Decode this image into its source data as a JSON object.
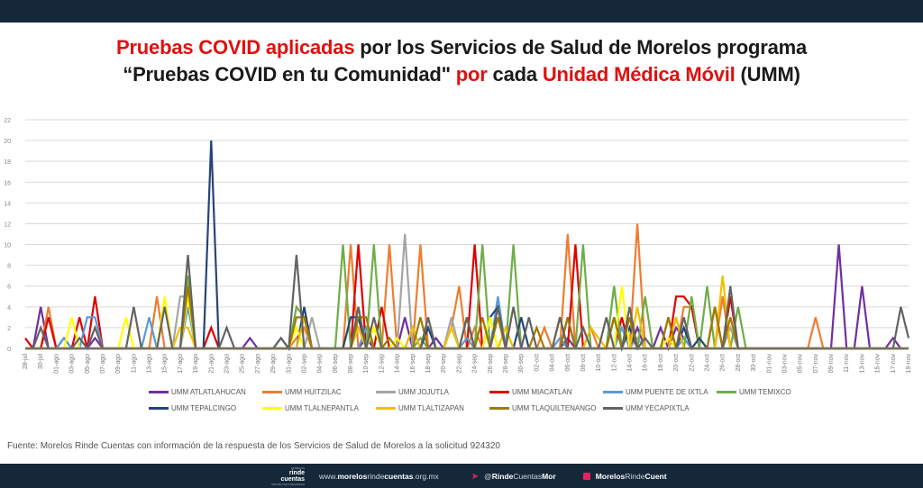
{
  "title": {
    "line1_red": "Pruebas COVID aplicadas",
    "line1_black": " por los Servicios de Salud de Morelos programa",
    "line2_black1": "“Pruebas COVID en tu Comunidad\" ",
    "line2_red1": "por",
    "line2_black2": " cada ",
    "line2_red2": "Unidad Médica Móvil",
    "line2_black3": " (UMM)"
  },
  "source": "Fuente: Morelos Rinde Cuentas con información de la respuesta de los Servicios de Salud de Morelos a la solicitud 924320",
  "footer": {
    "logo_small": "MORELOS",
    "logo_line1": "rinde",
    "logo_line2": "cuentas",
    "logo_tag": "CENTRO DE INTEGRIDAD",
    "url_pre": "www.",
    "url_b1": "morelos",
    "url_mid": "rinde",
    "url_b2": "cuentas",
    "url_post": ".org.mx",
    "twitter_icon": "twitter-icon",
    "twitter_pre": "@",
    "twitter_b": "Rinde",
    "twitter_mid": "Cuentas",
    "twitter_b2": "Mor",
    "facebook_icon": "facebook-icon",
    "facebook_b": "Morelos",
    "facebook_mid": "Rinde",
    "facebook_b2": "Cuent"
  },
  "chart_data": {
    "type": "line",
    "title": "",
    "xlabel": "",
    "ylabel": "",
    "ylim": [
      0,
      22
    ],
    "yticks": [
      0,
      2,
      4,
      6,
      8,
      10,
      12,
      14,
      16,
      18,
      20,
      22
    ],
    "grid": true,
    "legend_position": "bottom",
    "x_start": "28-jul",
    "x_end": "19-nov",
    "num_days": 115,
    "xtick_labels": [
      "28-jul",
      "30-jul",
      "01-ago",
      "03-ago",
      "05-ago",
      "07-ago",
      "09-ago",
      "11-ago",
      "13-ago",
      "15-ago",
      "17-ago",
      "19-ago",
      "21-ago",
      "23-ago",
      "25-ago",
      "27-ago",
      "29-ago",
      "31-ago",
      "02-sep",
      "04-sep",
      "06-sep",
      "08-sep",
      "10-sep",
      "12-sep",
      "14-sep",
      "16-sep",
      "18-sep",
      "20-sep",
      "22-sep",
      "24-sep",
      "26-sep",
      "28-sep",
      "30-sep",
      "02-oct",
      "04-oct",
      "06-oct",
      "08-oct",
      "10-oct",
      "12-oct",
      "14-oct",
      "16-oct",
      "18-oct",
      "20-oct",
      "22-oct",
      "24-oct",
      "26-oct",
      "28-oct",
      "30-oct",
      "01-nov",
      "03-nov",
      "05-nov",
      "07-nov",
      "09-nov",
      "11-nov",
      "13-nov",
      "15-nov",
      "17-nov",
      "19-nov"
    ],
    "series_note": "values given as [day_index, value] pairs; all other days are 0; day 0 = 28-jul",
    "series": [
      {
        "name": "UMM ATLATLAHUCAN",
        "color": "#7030a0",
        "points": [
          [
            2,
            4
          ],
          [
            5,
            1
          ],
          [
            9,
            1
          ],
          [
            29,
            1
          ],
          [
            44,
            1
          ],
          [
            49,
            3
          ],
          [
            53,
            1
          ],
          [
            70,
            1
          ],
          [
            79,
            2
          ],
          [
            82,
            2
          ],
          [
            84,
            2
          ],
          [
            85,
            1
          ],
          [
            97,
            0
          ],
          [
            105,
            10
          ],
          [
            108,
            6
          ],
          [
            112,
            1
          ]
        ]
      },
      {
        "name": "UMM HUITZILAC",
        "color": "#ed7d31",
        "points": [
          [
            3,
            4
          ],
          [
            17,
            5
          ],
          [
            35,
            1
          ],
          [
            36,
            2
          ],
          [
            42,
            10
          ],
          [
            47,
            10
          ],
          [
            51,
            10
          ],
          [
            55,
            2
          ],
          [
            56,
            6
          ],
          [
            58,
            2
          ],
          [
            67,
            2
          ],
          [
            70,
            11
          ],
          [
            73,
            2
          ],
          [
            79,
            12
          ],
          [
            83,
            3
          ],
          [
            85,
            4
          ],
          [
            86,
            4
          ],
          [
            90,
            5
          ],
          [
            102,
            3
          ]
        ]
      },
      {
        "name": "UMM JOJUTLA",
        "color": "#a5a5a5",
        "points": [
          [
            20,
            5
          ],
          [
            21,
            5
          ],
          [
            37,
            3
          ],
          [
            49,
            11
          ],
          [
            55,
            3
          ],
          [
            60,
            3
          ],
          [
            76,
            6
          ],
          [
            79,
            1
          ],
          [
            84,
            3
          ],
          [
            91,
            2
          ]
        ]
      },
      {
        "name": "UMM MIACATLAN",
        "color": "#e00000",
        "points": [
          [
            0,
            1
          ],
          [
            1,
            0
          ],
          [
            3,
            3
          ],
          [
            7,
            3
          ],
          [
            9,
            5
          ],
          [
            24,
            2
          ],
          [
            43,
            10
          ],
          [
            46,
            4
          ],
          [
            58,
            10
          ],
          [
            71,
            10
          ],
          [
            77,
            3
          ],
          [
            84,
            5
          ],
          [
            85,
            5
          ],
          [
            86,
            4
          ],
          [
            89,
            4
          ],
          [
            91,
            5
          ]
        ]
      },
      {
        "name": "UMM PUENTE DE IXTLA",
        "color": "#5b9bd5",
        "points": [
          [
            5,
            1
          ],
          [
            8,
            3
          ],
          [
            9,
            3
          ],
          [
            16,
            3
          ],
          [
            21,
            4
          ],
          [
            44,
            2
          ],
          [
            50,
            2
          ],
          [
            57,
            1
          ],
          [
            61,
            5
          ],
          [
            69,
            1
          ],
          [
            77,
            2
          ],
          [
            85,
            1
          ]
        ]
      },
      {
        "name": "UMM TEMIXCO",
        "color": "#70ad47",
        "points": [
          [
            21,
            7
          ],
          [
            33,
            1
          ],
          [
            35,
            4
          ],
          [
            36,
            3
          ],
          [
            41,
            10
          ],
          [
            45,
            10
          ],
          [
            51,
            1
          ],
          [
            59,
            10
          ],
          [
            63,
            10
          ],
          [
            69,
            3
          ],
          [
            72,
            10
          ],
          [
            76,
            6
          ],
          [
            80,
            5
          ],
          [
            86,
            5
          ],
          [
            88,
            6
          ],
          [
            92,
            4
          ]
        ]
      },
      {
        "name": "UMM TEPALCINGO",
        "color": "#264478",
        "points": [
          [
            24,
            20
          ],
          [
            36,
            4
          ],
          [
            42,
            3
          ],
          [
            43,
            3
          ],
          [
            52,
            2
          ],
          [
            60,
            3
          ],
          [
            61,
            4
          ],
          [
            64,
            3
          ],
          [
            70,
            3
          ],
          [
            76,
            3
          ],
          [
            78,
            2
          ],
          [
            85,
            2
          ],
          [
            87,
            1
          ]
        ]
      },
      {
        "name": "UMM TLALNEPANTLA",
        "color": "#ffff00",
        "points": [
          [
            6,
            3
          ],
          [
            13,
            3
          ],
          [
            18,
            5
          ],
          [
            21,
            5
          ],
          [
            35,
            2
          ],
          [
            45,
            2
          ],
          [
            48,
            1
          ],
          [
            60,
            3
          ],
          [
            72,
            2
          ],
          [
            77,
            6
          ],
          [
            83,
            1
          ]
        ]
      },
      {
        "name": "UMM TLALTIZAPAN",
        "color": "#f0c000",
        "points": [
          [
            20,
            2
          ],
          [
            21,
            2
          ],
          [
            36,
            3
          ],
          [
            43,
            2
          ],
          [
            50,
            2
          ],
          [
            55,
            2
          ],
          [
            62,
            2
          ],
          [
            69,
            3
          ],
          [
            73,
            2
          ],
          [
            74,
            1
          ],
          [
            79,
            4
          ],
          [
            84,
            3
          ],
          [
            90,
            7
          ]
        ]
      },
      {
        "name": "UMM TLAQUILTENANGO",
        "color": "#9e7b00",
        "points": [
          [
            21,
            6
          ],
          [
            35,
            3
          ],
          [
            36,
            3
          ],
          [
            43,
            3
          ],
          [
            44,
            3
          ],
          [
            47,
            1
          ],
          [
            51,
            3
          ],
          [
            57,
            3
          ],
          [
            59,
            3
          ],
          [
            61,
            3
          ],
          [
            66,
            2
          ],
          [
            70,
            3
          ],
          [
            76,
            3
          ],
          [
            78,
            3
          ],
          [
            83,
            3
          ],
          [
            89,
            4
          ],
          [
            91,
            3
          ]
        ]
      },
      {
        "name": "UMM YECAPIXTLA",
        "color": "#636363",
        "points": [
          [
            2,
            2
          ],
          [
            7,
            1
          ],
          [
            9,
            2
          ],
          [
            14,
            4
          ],
          [
            18,
            4
          ],
          [
            21,
            9
          ],
          [
            26,
            2
          ],
          [
            33,
            1
          ],
          [
            35,
            9
          ],
          [
            43,
            4
          ],
          [
            45,
            3
          ],
          [
            52,
            3
          ],
          [
            57,
            3
          ],
          [
            61,
            4
          ],
          [
            63,
            4
          ],
          [
            65,
            3
          ],
          [
            69,
            3
          ],
          [
            72,
            2
          ],
          [
            75,
            3
          ],
          [
            78,
            4
          ],
          [
            80,
            1
          ],
          [
            85,
            3
          ],
          [
            91,
            6
          ],
          [
            113,
            4
          ],
          [
            114,
            1
          ]
        ]
      }
    ]
  }
}
